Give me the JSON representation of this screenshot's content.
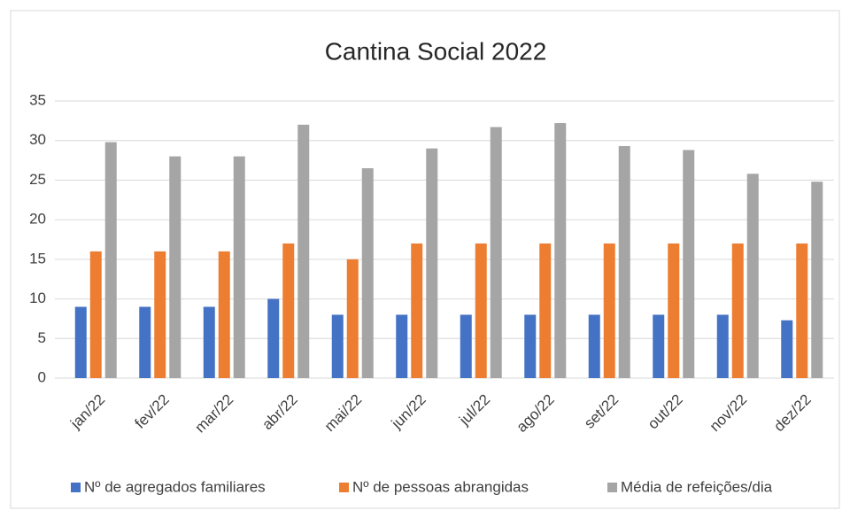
{
  "chart_data": {
    "type": "bar",
    "title": "Cantina Social 2022",
    "categories": [
      "jan/22",
      "fev/22",
      "mar/22",
      "abr/22",
      "mai/22",
      "jun/22",
      "jul/22",
      "ago/22",
      "set/22",
      "out/22",
      "nov/22",
      "dez/22"
    ],
    "series": [
      {
        "name": "Nº de agregados familiares",
        "color": "#4472c4",
        "values": [
          9,
          9,
          9,
          10,
          8,
          8,
          8,
          8,
          8,
          8,
          8,
          7.3
        ]
      },
      {
        "name": "Nº de pessoas abrangidas",
        "color": "#ed7d31",
        "values": [
          16,
          16,
          16,
          17,
          15,
          17,
          17,
          17,
          17,
          17,
          17,
          17
        ]
      },
      {
        "name": "Média de refeições/dia",
        "color": "#a5a5a5",
        "values": [
          29.8,
          28,
          28,
          32,
          26.5,
          29,
          31.7,
          32.2,
          29.3,
          28.8,
          25.8,
          24.8
        ]
      }
    ],
    "ylim": [
      0,
      35
    ],
    "yticks": [
      0,
      5,
      10,
      15,
      20,
      25,
      30,
      35
    ],
    "grid": true,
    "legend": "bottom"
  }
}
